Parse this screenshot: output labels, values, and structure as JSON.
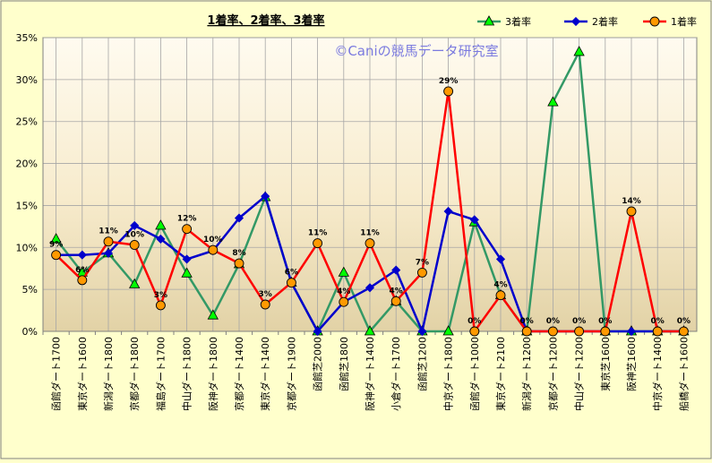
{
  "chart_data": {
    "type": "line",
    "title": "1着率、2着率、3着率",
    "watermark": "©Caniの競馬データ研究室",
    "xlabel": "",
    "ylabel": "",
    "ylim": [
      0,
      35
    ],
    "y_ticks": [
      "0%",
      "5%",
      "10%",
      "15%",
      "20%",
      "25%",
      "30%",
      "35%"
    ],
    "grid": true,
    "legend_position": "top-right",
    "categories": [
      "函館ダート1700",
      "東京ダート1600",
      "新潟ダート1800",
      "京都ダート1800",
      "福島ダート1700",
      "中山ダート1800",
      "阪神ダート1800",
      "京都ダート1400",
      "東京ダート1400",
      "京都ダート1900",
      "函館芝2000",
      "函館芝1800",
      "阪神ダート1400",
      "小倉ダート1700",
      "函館芝1200",
      "中京ダート1800",
      "函館ダート1000",
      "東京ダート2100",
      "新潟ダート1200",
      "京都ダート1200",
      "中山ダート1200",
      "東京芝1600",
      "阪神芝1600",
      "中京ダート1400",
      "船橋ダート1600"
    ],
    "series": [
      {
        "name": "3着率",
        "color": "#339966",
        "marker": "triangle",
        "marker_fill": "#00ff00",
        "values": [
          11,
          7,
          9.3,
          5.6,
          12.6,
          6.9,
          1.9,
          8,
          16,
          5.8,
          0,
          7,
          0,
          3.6,
          0,
          0,
          13,
          4.3,
          0,
          27.3,
          33.3,
          0,
          0,
          0,
          0
        ]
      },
      {
        "name": "2着率",
        "color": "#0000cc",
        "marker": "diamond",
        "marker_fill": "#0000cc",
        "values": [
          9.1,
          9.1,
          9.3,
          12.6,
          11,
          8.6,
          9.6,
          13.5,
          16.1,
          5.8,
          0,
          3.5,
          5.2,
          7.3,
          0,
          14.3,
          13.3,
          8.6,
          0,
          0,
          0,
          0,
          0,
          0,
          0
        ]
      },
      {
        "name": "1着率",
        "color": "#ff0000",
        "marker": "circle",
        "marker_fill": "#ff9900",
        "values": [
          9.1,
          6.1,
          10.7,
          10.3,
          3.1,
          12.2,
          9.7,
          8.1,
          3.2,
          5.8,
          10.5,
          3.5,
          10.5,
          3.6,
          7,
          28.6,
          0,
          4.3,
          0,
          0,
          0,
          0,
          14.3,
          0,
          0
        ]
      }
    ],
    "data_labels": [
      "9%",
      "6%",
      "11%",
      "10%",
      "3%",
      "12%",
      "10%",
      "8%",
      "3%",
      "6%",
      "11%",
      "4%",
      "11%",
      "4%",
      "7%",
      "29%",
      "0%",
      "4%",
      "0%",
      "0%",
      "0%",
      "0%",
      "14%",
      "0%",
      "0%"
    ]
  }
}
